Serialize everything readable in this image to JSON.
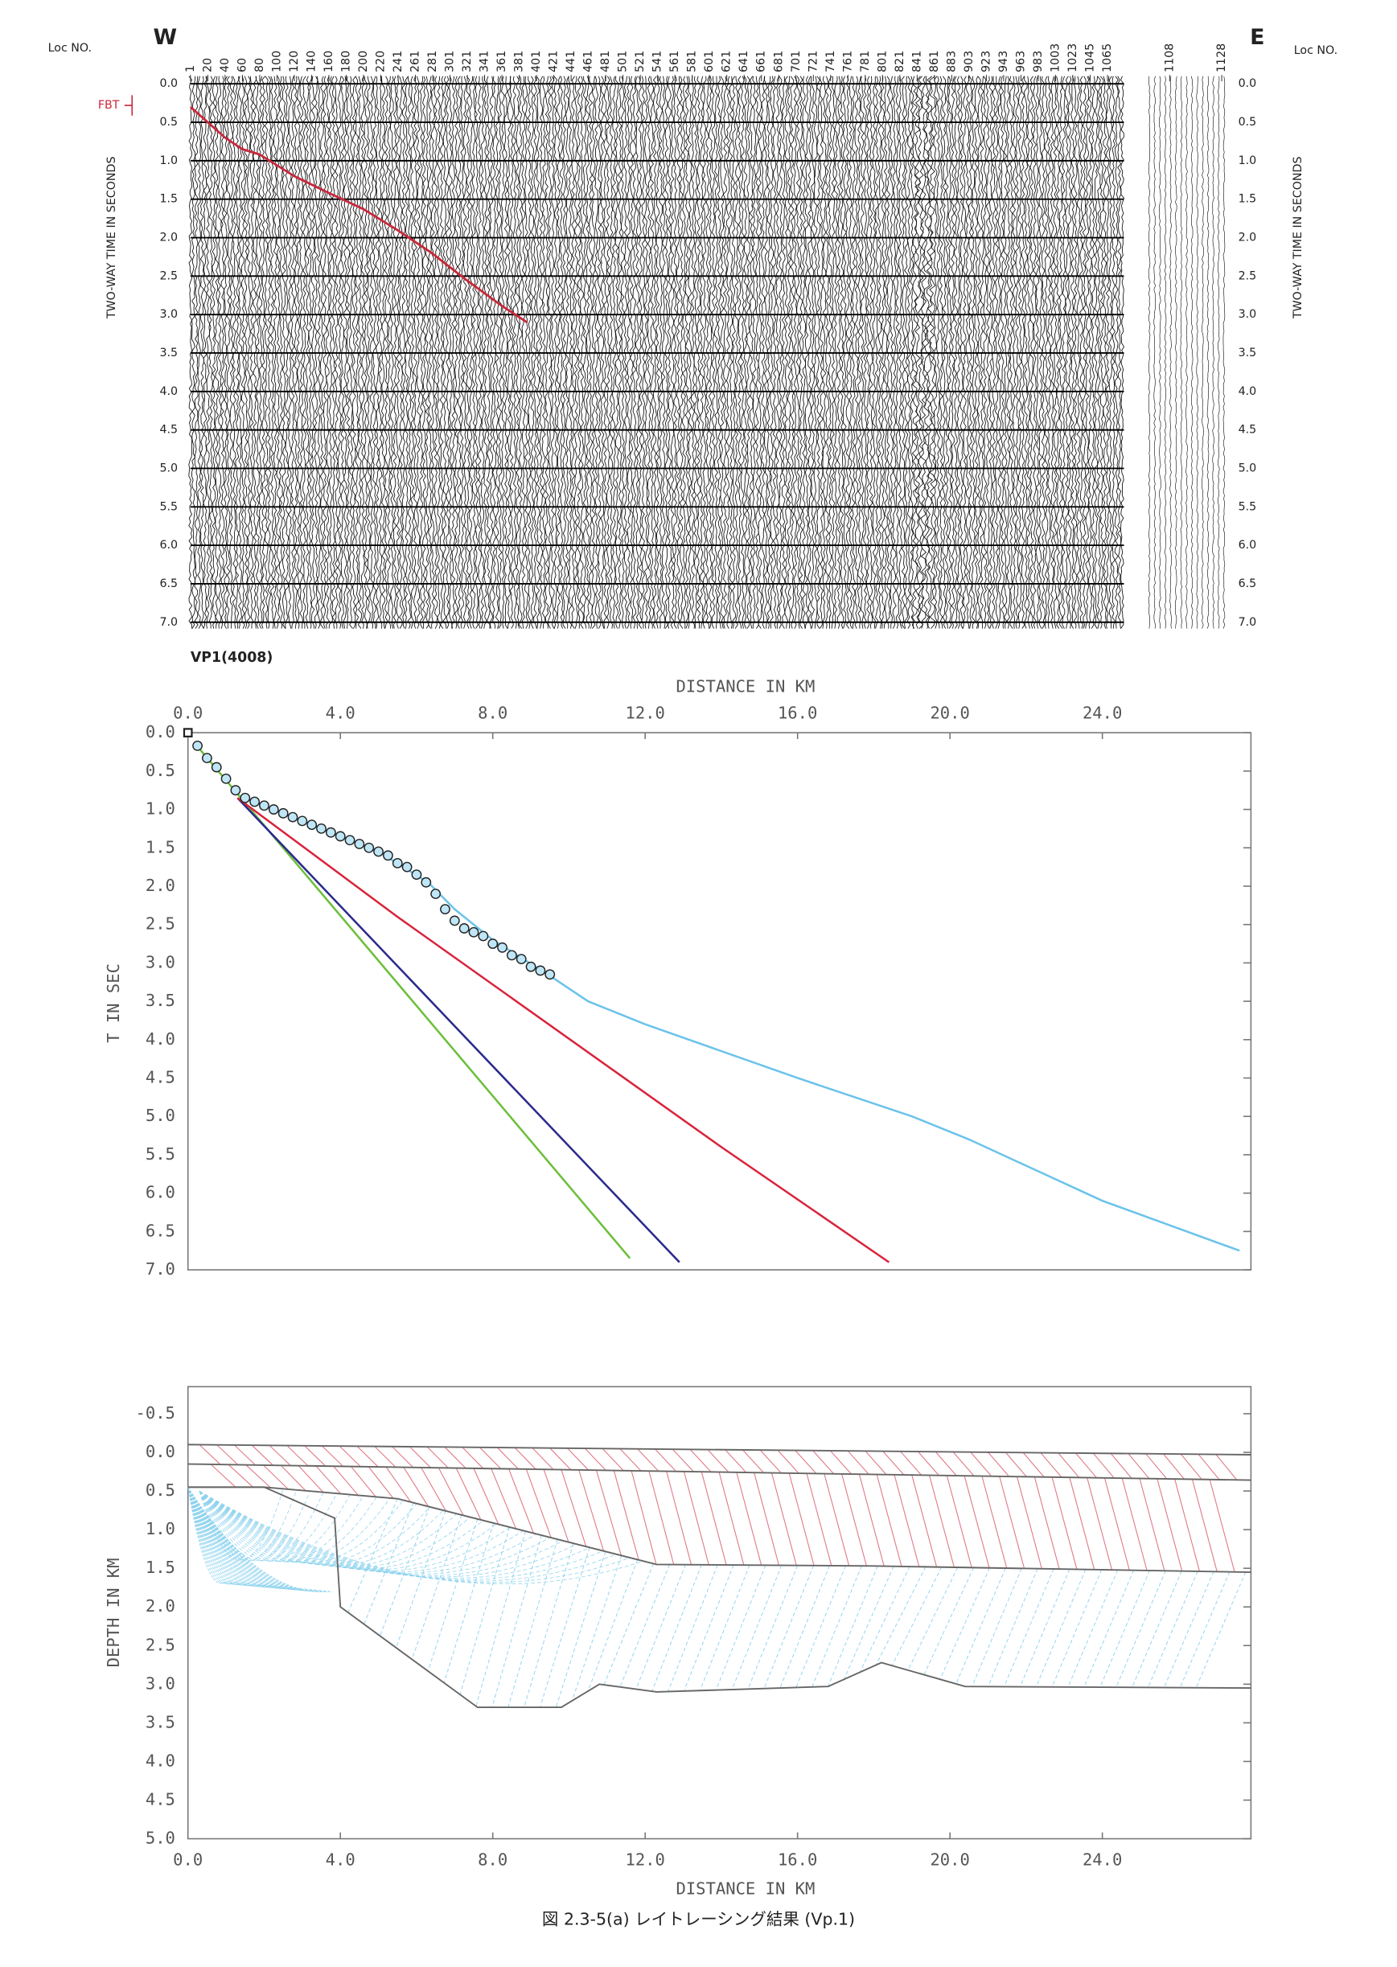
{
  "caption": "図 2.3-5(a) レイトレーシング結果 (Vp.1)",
  "chart_data": [
    {
      "type": "seismic",
      "loc_label": "Loc NO.",
      "west_label": "W",
      "east_label": "E",
      "y_label": "TWO-WAY TIME IN SECONDS",
      "shot_label": "VP1(4008)",
      "xticks": [
        1,
        20,
        40,
        60,
        80,
        100,
        120,
        140,
        160,
        180,
        200,
        220,
        241,
        261,
        281,
        301,
        321,
        341,
        361,
        381,
        401,
        421,
        441,
        461,
        481,
        501,
        521,
        541,
        561,
        581,
        601,
        621,
        641,
        661,
        681,
        701,
        721,
        741,
        761,
        781,
        801,
        821,
        841,
        861,
        883,
        903,
        923,
        943,
        963,
        983,
        1003,
        1023,
        1045,
        1065,
        1108,
        1128
      ],
      "ylim": [
        0,
        7
      ],
      "yticks": [
        {
          "value": 0,
          "label": "0.0"
        },
        0.5,
        {
          "value": 1,
          "label": "1.0"
        },
        1.5,
        {
          "value": 2,
          "label": "2.0"
        },
        2.5,
        {
          "value": 3,
          "label": "3.0"
        },
        3.5,
        {
          "value": 4,
          "label": "4.0"
        },
        4.5,
        {
          "value": 5,
          "label": "5.0"
        },
        5.5,
        {
          "value": 6,
          "label": "6.0"
        },
        6.5,
        {
          "value": 7,
          "label": "7.0"
        }
      ],
      "series": [
        {
          "name": "FBT",
          "color": "#c8283c",
          "x": [
            1,
            20,
            40,
            60,
            80,
            120,
            160,
            200,
            240,
            280,
            320,
            360,
            390
          ],
          "values": [
            0.3,
            0.5,
            0.7,
            0.85,
            0.92,
            1.2,
            1.42,
            1.63,
            1.9,
            2.2,
            2.55,
            2.88,
            3.1
          ]
        }
      ]
    },
    {
      "type": "line",
      "x_label": "DISTANCE IN KM",
      "y_label": "T IN SEC",
      "x_axis_position": "top",
      "y_inverted": true,
      "xlim": [
        0,
        27.9
      ],
      "ylim": [
        0,
        7
      ],
      "xticks": [
        {
          "value": 0,
          "label": "0.0"
        },
        {
          "value": 4,
          "label": "4.0"
        },
        {
          "value": 8,
          "label": "8.0"
        },
        {
          "value": 12,
          "label": "12.0"
        },
        {
          "value": 16,
          "label": "16.0"
        },
        {
          "value": 20,
          "label": "20.0"
        },
        {
          "value": 24,
          "label": "24.0"
        }
      ],
      "yticks": [
        {
          "value": 0,
          "label": "0.0"
        },
        0.5,
        {
          "value": 1,
          "label": "1.0"
        },
        1.5,
        {
          "value": 2,
          "label": "2.0"
        },
        2.5,
        {
          "value": 3,
          "label": "3.0"
        },
        3.5,
        {
          "value": 4,
          "label": "4.0"
        },
        4.5,
        {
          "value": 5,
          "label": "5.0"
        },
        5.5,
        {
          "value": 6,
          "label": "6.0"
        },
        6.5,
        {
          "value": 7,
          "label": "7.0"
        }
      ],
      "series": [
        {
          "color": "#6cbf3a",
          "x": [
            0.2,
            11.6
          ],
          "values": [
            0.15,
            6.85
          ]
        },
        {
          "color": "#2b2a8c",
          "x": [
            1.3,
            12.9
          ],
          "values": [
            0.85,
            6.9
          ]
        },
        {
          "color": "#d8243c",
          "x": [
            1.3,
            5.5,
            14,
            18.4
          ],
          "values": [
            0.85,
            2.4,
            5.4,
            6.9
          ]
        },
        {
          "color": "#6cc3ea",
          "x": [
            1.5,
            3,
            5,
            6.3,
            7,
            8,
            9.6,
            10.5,
            12,
            16,
            19,
            20.5,
            24,
            27.6
          ],
          "values": [
            0.85,
            1.15,
            1.55,
            1.95,
            2.3,
            2.7,
            3.2,
            3.5,
            3.8,
            4.5,
            5.0,
            5.3,
            6.1,
            6.75
          ]
        },
        {
          "color": "#222222",
          "marker": "square",
          "x": [
            0
          ],
          "values": [
            0
          ]
        },
        {
          "color": "#222222",
          "marker": "circle",
          "x": [
            0.25,
            0.5,
            0.75,
            1.0,
            1.25,
            1.5,
            1.75,
            2.0,
            2.25,
            2.5,
            2.75,
            3.0,
            3.25,
            3.5,
            3.75,
            4.0,
            4.25,
            4.5,
            4.75,
            5.0,
            5.25,
            5.5,
            5.75,
            6.0,
            6.25,
            6.5,
            6.75,
            7.0,
            7.25,
            7.5,
            7.75,
            8.0,
            8.25,
            8.5,
            8.75,
            9.0,
            9.25,
            9.5
          ],
          "values": [
            0.17,
            0.33,
            0.45,
            0.6,
            0.75,
            0.85,
            0.9,
            0.95,
            1.0,
            1.05,
            1.1,
            1.15,
            1.2,
            1.25,
            1.3,
            1.35,
            1.4,
            1.45,
            1.5,
            1.55,
            1.6,
            1.7,
            1.75,
            1.85,
            1.95,
            2.1,
            2.3,
            2.45,
            2.55,
            2.6,
            2.65,
            2.75,
            2.8,
            2.9,
            2.95,
            3.05,
            3.1,
            3.15
          ]
        }
      ]
    },
    {
      "type": "line",
      "x_label": "DISTANCE IN KM",
      "y_label": "DEPTH IN KM",
      "x_axis_position": "bottom",
      "y_inverted": true,
      "xlim": [
        0,
        27.9
      ],
      "ylim": [
        -0.85,
        5
      ],
      "xticks": [
        {
          "value": 0,
          "label": "0.0"
        },
        {
          "value": 4,
          "label": "4.0"
        },
        {
          "value": 8,
          "label": "8.0"
        },
        {
          "value": 12,
          "label": "12.0"
        },
        {
          "value": 16,
          "label": "16.0"
        },
        {
          "value": 20,
          "label": "20.0"
        },
        {
          "value": 24,
          "label": "24.0"
        }
      ],
      "yticks": [
        -0.5,
        {
          "value": 0,
          "label": "0.0"
        },
        0.5,
        {
          "value": 1,
          "label": "1.0"
        },
        1.5,
        {
          "value": 2,
          "label": "2.0"
        },
        2.5,
        {
          "value": 3,
          "label": "3.0"
        },
        3.5,
        {
          "value": 4,
          "label": "4.0"
        },
        4.5,
        {
          "value": 5,
          "label": "5.0"
        }
      ],
      "series": [
        {
          "color": "#666666",
          "x": [
            0,
            27.9
          ],
          "values": [
            -0.1,
            0.03
          ]
        },
        {
          "color": "#666666",
          "x": [
            0,
            27.9
          ],
          "values": [
            0.15,
            0.36
          ]
        },
        {
          "color": "#666666",
          "x": [
            0,
            2,
            5.5,
            12.3,
            18,
            27.9
          ],
          "values": [
            0.45,
            0.45,
            0.6,
            1.45,
            1.47,
            1.55
          ]
        },
        {
          "color": "#666666",
          "x": [
            0,
            2,
            3.85,
            4.0,
            7.6,
            9.8,
            10.8,
            12.3,
            16.8,
            18.2,
            20.4,
            27.9
          ],
          "values": [
            0.45,
            0.45,
            0.85,
            2.0,
            3.3,
            3.3,
            3.0,
            3.1,
            3.03,
            2.72,
            3.03,
            3.05
          ]
        }
      ]
    }
  ]
}
